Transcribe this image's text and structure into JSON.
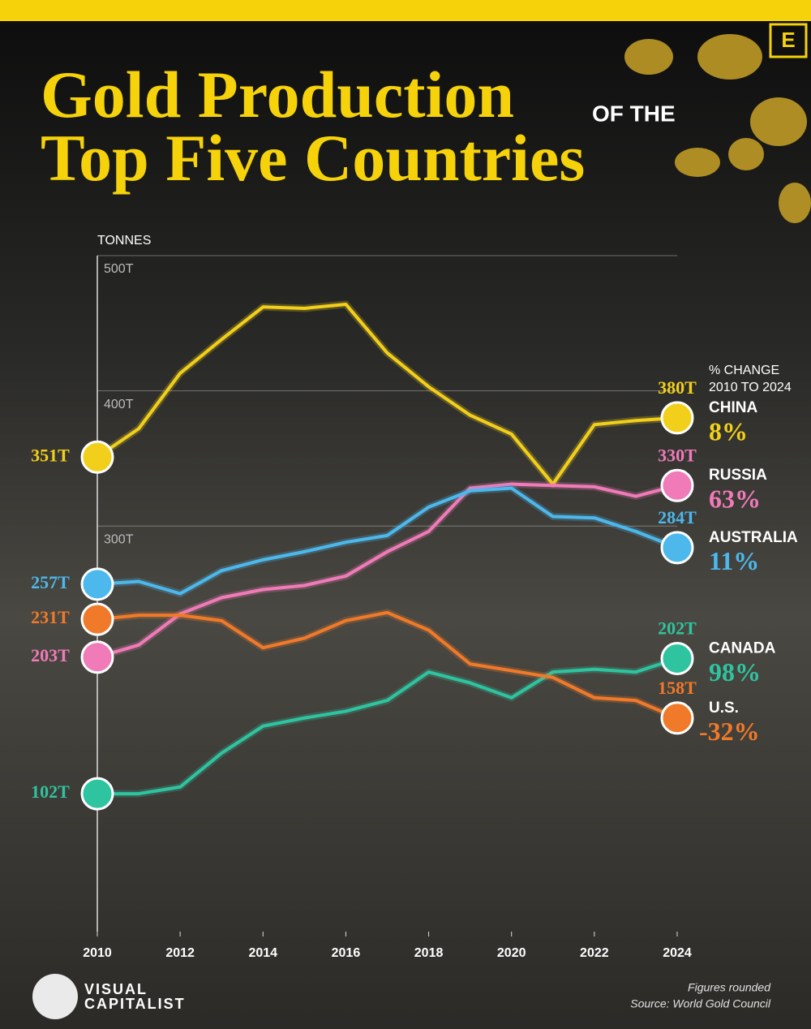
{
  "chart_data": {
    "type": "line",
    "title": "Gold Production",
    "title_connector": "OF THE",
    "title_line2": "Top Five Countries",
    "y_axis_label": "TONNES",
    "legend_header": [
      "% CHANGE",
      "2010 TO 2024"
    ],
    "footnote": "Figures rounded",
    "source": "Source: World Gold Council",
    "brand": [
      "VISUAL",
      "CAPITALIST"
    ],
    "badge": "E",
    "x": [
      2010,
      2011,
      2012,
      2013,
      2014,
      2015,
      2016,
      2017,
      2018,
      2019,
      2020,
      2021,
      2022,
      2023,
      2024
    ],
    "xlim": [
      2010,
      2024
    ],
    "xticks": [
      2010,
      2012,
      2014,
      2016,
      2018,
      2020,
      2022,
      2024
    ],
    "ylim": [
      0,
      500
    ],
    "yticks": [
      {
        "value": 300,
        "label": "300T"
      },
      {
        "value": 400,
        "label": "400T"
      },
      {
        "value": 500,
        "label": "500T"
      }
    ],
    "grid": true,
    "series": [
      {
        "name": "CHINA",
        "color": "#f2cf1a",
        "change": "8%",
        "values": [
          351,
          372,
          413,
          438,
          462,
          461,
          464,
          428,
          403,
          382,
          368,
          331,
          375,
          378,
          380
        ],
        "value_labels": [
          "351T",
          null,
          null,
          null,
          null,
          null,
          null,
          null,
          null,
          null,
          null,
          null,
          null,
          null,
          "380T"
        ]
      },
      {
        "name": "RUSSIA",
        "color": "#f07bb8",
        "change": "63%",
        "values": [
          203,
          212,
          235,
          247,
          253,
          256,
          263,
          281,
          296,
          328,
          331,
          330,
          329,
          322,
          330
        ],
        "value_labels": [
          "203T",
          null,
          null,
          null,
          null,
          null,
          null,
          null,
          null,
          null,
          null,
          null,
          null,
          null,
          "330T"
        ]
      },
      {
        "name": "AUSTRALIA",
        "color": "#4cb8ec",
        "change": "11%",
        "values": [
          257,
          259,
          250,
          267,
          275,
          281,
          288,
          293,
          314,
          326,
          328,
          307,
          306,
          296,
          284
        ],
        "value_labels": [
          "257T",
          null,
          null,
          null,
          null,
          null,
          null,
          null,
          null,
          null,
          null,
          null,
          null,
          null,
          "284T"
        ]
      },
      {
        "name": "CANADA",
        "color": "#2fc4a0",
        "change": "98%",
        "values": [
          102,
          102,
          107,
          132,
          152,
          158,
          163,
          171,
          192,
          184,
          173,
          192,
          194,
          192,
          202
        ],
        "value_labels": [
          "102T",
          null,
          null,
          null,
          null,
          null,
          null,
          null,
          null,
          null,
          null,
          null,
          null,
          null,
          "202T"
        ]
      },
      {
        "name": "U.S.",
        "color": "#f07a2a",
        "change": "-32%",
        "values": [
          231,
          234,
          234,
          230,
          210,
          217,
          230,
          236,
          223,
          198,
          193,
          188,
          173,
          171,
          158
        ],
        "value_labels": [
          "231T",
          null,
          null,
          null,
          null,
          null,
          null,
          null,
          null,
          null,
          null,
          null,
          null,
          null,
          "158T"
        ]
      }
    ]
  }
}
